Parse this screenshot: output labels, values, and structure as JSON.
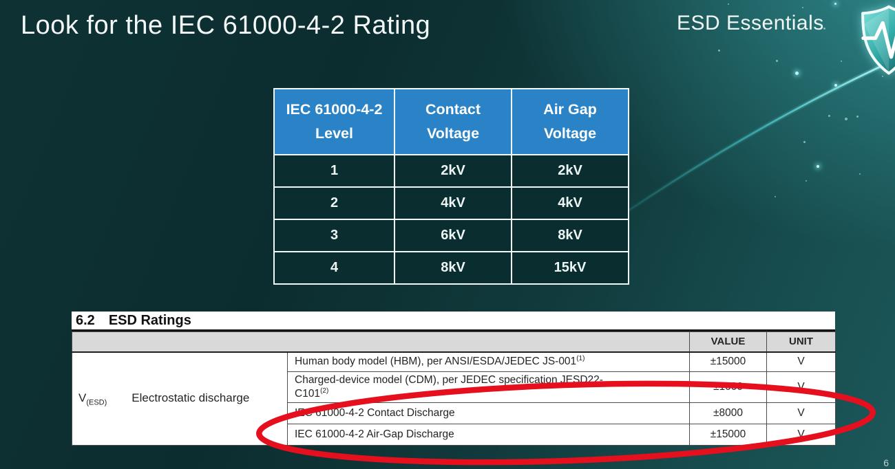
{
  "slide": {
    "title": "Look for the IEC 61000-4-2 Rating",
    "brand": "ESD Essentials",
    "page_number": "6"
  },
  "colors": {
    "accent_blue": "#2a83c6",
    "highlight_red": "#e50f1e",
    "background_dark_teal": "#0c2d2f",
    "background_light_teal": "#1c5759",
    "table_header_gray": "#d9d9d9"
  },
  "icons": {
    "shield": "shield-pulse-icon"
  },
  "iec_table": {
    "headers": [
      {
        "lines": [
          "IEC 61000-4-2",
          "Level"
        ]
      },
      {
        "lines": [
          "Contact",
          "Voltage"
        ]
      },
      {
        "lines": [
          "Air Gap",
          "Voltage"
        ]
      }
    ],
    "rows": [
      [
        "1",
        "2kV",
        "2kV"
      ],
      [
        "2",
        "4kV",
        "4kV"
      ],
      [
        "3",
        "6kV",
        "8kV"
      ],
      [
        "4",
        "8kV",
        "15kV"
      ]
    ]
  },
  "datasheet": {
    "section_number": "6.2",
    "section_title": "ESD Ratings",
    "value_header": "VALUE",
    "unit_header": "UNIT",
    "symbol_base": "V",
    "symbol_sub": "(ESD)",
    "parameter": "Electrostatic discharge",
    "rows": [
      {
        "segments": [
          {
            "t": "Human body model (HBM), per ANSI/ESDA/JEDEC JS-001"
          },
          {
            "t": "(1)",
            "sup": true
          }
        ],
        "value": "±15000",
        "unit": "V",
        "highlighted": false
      },
      {
        "segments": [
          {
            "t": "Charged-device model (CDM), per JEDEC specification JESD22-"
          },
          {
            "br": true
          },
          {
            "t": "C101"
          },
          {
            "t": "(2)",
            "sup": true
          }
        ],
        "value": "±1000",
        "unit": "V",
        "highlighted": false
      },
      {
        "segments": [
          {
            "t": "IEC 61000-4-2 Contact Discharge"
          }
        ],
        "value": "±8000",
        "unit": "V",
        "highlighted": true
      },
      {
        "segments": [
          {
            "t": "IEC 61000-4-2 Air-Gap Discharge"
          }
        ],
        "value": "±15000",
        "unit": "V",
        "highlighted": true
      }
    ]
  }
}
